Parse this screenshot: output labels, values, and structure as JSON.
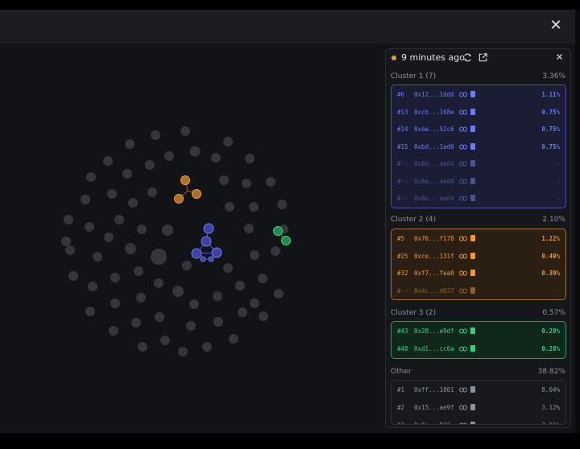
{
  "panel": {
    "time_label": "9 minutes ago",
    "status_color": "#d8a33b",
    "icons": [
      "refresh-icon",
      "external-link-icon",
      "close-icon"
    ]
  },
  "clusters": [
    {
      "title": "Cluster 1 (7)",
      "percent": "3.36%",
      "color": "#6c7bff",
      "rows": [
        {
          "index": "#6",
          "address": "0x12...1ddd",
          "percent": "1.11%"
        },
        {
          "index": "#13",
          "address": "0xcb...168e",
          "percent": "0.75%"
        },
        {
          "index": "#14",
          "address": "0xaa...52c6",
          "percent": "0.75%"
        },
        {
          "index": "#15",
          "address": "0xbd...1ad0",
          "percent": "0.75%"
        },
        {
          "index": "#--",
          "address": "0x8e...aed4",
          "percent": "-"
        },
        {
          "index": "#--",
          "address": "0x8e...aed4",
          "percent": "-"
        },
        {
          "index": "#--",
          "address": "0x8e...aed4",
          "percent": "-"
        }
      ]
    },
    {
      "title": "Cluster 2 (4)",
      "percent": "2.10%",
      "color": "#f0992f",
      "rows": [
        {
          "index": "#5",
          "address": "0x76...f178",
          "percent": "1.22%"
        },
        {
          "index": "#25",
          "address": "0xce...131f",
          "percent": "0.49%"
        },
        {
          "index": "#32",
          "address": "0xf7...fea9",
          "percent": "0.39%"
        },
        {
          "index": "#--",
          "address": "0x4c...d027",
          "percent": "-"
        }
      ]
    },
    {
      "title": "Cluster 3 (2)",
      "percent": "0.57%",
      "color": "#34d37f",
      "rows": [
        {
          "index": "#43",
          "address": "0x28...e9df",
          "percent": "0.29%"
        },
        {
          "index": "#48",
          "address": "0xd1...cc6a",
          "percent": "0.28%"
        }
      ]
    },
    {
      "title": "Other",
      "percent": "38.82%",
      "color": "#8d929c",
      "rows": [
        {
          "index": "#1",
          "address": "0xff...1801",
          "percent": "8.04%"
        },
        {
          "index": "#2",
          "address": "0x15...ae9f",
          "percent": "3.12%"
        },
        {
          "index": "#3",
          "address": "0x9c...832",
          "percent": "2.16%"
        }
      ]
    }
  ]
}
